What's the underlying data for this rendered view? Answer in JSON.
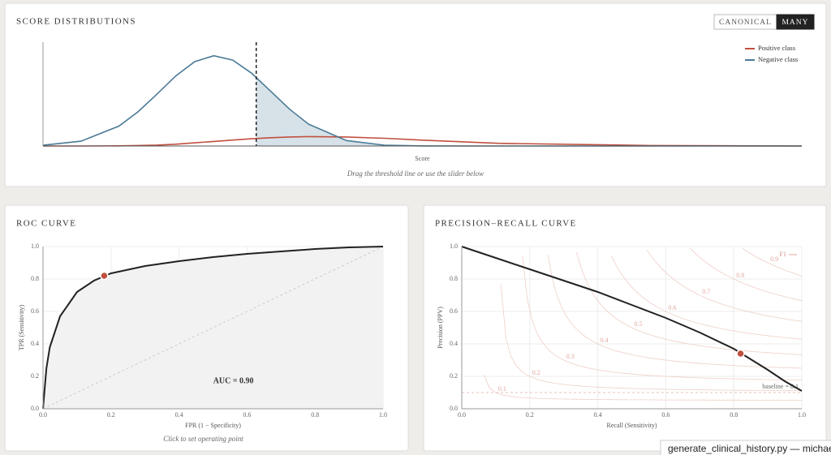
{
  "buttons": [
    "CANONICAL",
    "MANY"
  ],
  "footer_tab": "generate_clinical_history.py — michael",
  "chart_data": [
    {
      "type": "line",
      "title": "SCORE DISTRIBUTIONS",
      "x_label": "Score",
      "caption": "Drag the threshold line or use the slider below",
      "x": [
        0,
        0.05,
        0.1,
        0.125,
        0.15,
        0.175,
        0.2,
        0.225,
        0.25,
        0.275,
        0.3,
        0.325,
        0.35,
        0.4,
        0.45,
        0.5,
        0.6,
        0.8,
        1.0
      ],
      "series": [
        {
          "name": "Positive class",
          "color": "#c0503f",
          "values": [
            0,
            0,
            0.002,
            0.005,
            0.01,
            0.02,
            0.035,
            0.05,
            0.066,
            0.08,
            0.092,
            0.1,
            0.104,
            0.1,
            0.085,
            0.065,
            0.03,
            0.005,
            0
          ]
        },
        {
          "name": "Negative class",
          "color": "#4a7a96",
          "values": [
            0.008,
            0.053,
            0.22,
            0.377,
            0.573,
            0.776,
            0.934,
            1.0,
            0.951,
            0.806,
            0.607,
            0.407,
            0.242,
            0.06,
            0.009,
            0.001,
            0,
            0,
            0
          ]
        }
      ],
      "threshold": 0.281,
      "xlim": [
        0,
        1
      ],
      "ylim": [
        0,
        1.15
      ],
      "legend": "top-right"
    },
    {
      "type": "line",
      "title": "ROC CURVE",
      "x_label": "FPR (1 − Specificity)",
      "y_label": "TPR (Sensitivity)",
      "caption": "Click to set operating point",
      "annotation": "AUC = 0.90",
      "x": [
        0,
        0.01,
        0.02,
        0.05,
        0.1,
        0.15,
        0.2,
        0.3,
        0.4,
        0.5,
        0.6,
        0.7,
        0.8,
        0.9,
        1.0
      ],
      "series": [
        {
          "color": "#222222",
          "values": [
            0,
            0.25,
            0.38,
            0.57,
            0.72,
            0.79,
            0.835,
            0.88,
            0.91,
            0.935,
            0.955,
            0.97,
            0.985,
            0.995,
            1.0
          ]
        }
      ],
      "operating_point": {
        "x": 0.18,
        "y": 0.82
      },
      "xlim": [
        0,
        1
      ],
      "ylim": [
        0,
        1
      ],
      "xticks": [
        {
          "value": 0,
          "label": "0.0"
        },
        0.2,
        0.4,
        0.6,
        0.8,
        {
          "value": 1,
          "label": "1.0"
        }
      ],
      "yticks": [
        {
          "value": 0,
          "label": "0.0"
        },
        0.2,
        0.4,
        0.6,
        0.8,
        {
          "value": 1,
          "label": "1.0"
        }
      ],
      "grid": true
    },
    {
      "type": "line",
      "title": "PRECISION–RECALL CURVE",
      "x_label": "Recall (Sensitivity)",
      "y_label": "Precision (PPV)",
      "x": [
        0,
        0.1,
        0.2,
        0.3,
        0.4,
        0.5,
        0.6,
        0.7,
        0.8,
        0.9,
        0.95,
        1.0
      ],
      "series": [
        {
          "color": "#222222",
          "values": [
            1.0,
            0.93,
            0.86,
            0.79,
            0.72,
            0.64,
            0.56,
            0.47,
            0.37,
            0.24,
            0.17,
            0.11
          ]
        }
      ],
      "operating_point": {
        "x": 0.82,
        "y": 0.34
      },
      "baseline": {
        "value": 0.1,
        "label": "baseline = 0.1"
      },
      "f1_label": "F1",
      "f1_isolines": [
        0.1,
        0.2,
        0.3,
        0.4,
        0.5,
        0.6,
        0.7,
        0.8,
        0.9
      ],
      "xlim": [
        0,
        1
      ],
      "ylim": [
        0,
        1
      ],
      "xticks": [
        {
          "value": 0,
          "label": "0.0"
        },
        0.2,
        0.4,
        0.6,
        0.8,
        {
          "value": 1,
          "label": "1.0"
        }
      ],
      "yticks": [
        {
          "value": 0,
          "label": "0.0"
        },
        0.2,
        0.4,
        0.6,
        0.8,
        {
          "value": 1,
          "label": "1.0"
        }
      ],
      "grid": true
    }
  ]
}
